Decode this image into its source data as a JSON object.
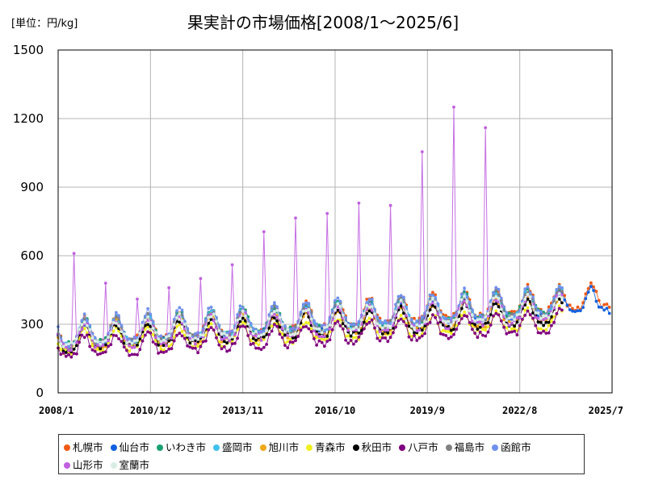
{
  "chart_data": {
    "type": "line",
    "title": "果実計の市場価格[2008/1～2025/6]",
    "unit_label": "[単位：円/kg]",
    "xlabel": "",
    "ylabel": "",
    "ylim": [
      0,
      1500
    ],
    "yticks": [
      0,
      300,
      600,
      900,
      1200,
      1500
    ],
    "y_tick_labels": [
      "0",
      "300",
      "600",
      "900",
      "1200",
      "1500"
    ],
    "x_range": [
      "2008/1",
      "2025/7"
    ],
    "x_tick_labels": [
      "2008/1",
      "2010/12",
      "2013/11",
      "2016/10",
      "2019/9",
      "2022/8",
      "2025/7"
    ],
    "grid": true,
    "legend_position": "bottom",
    "series": [
      {
        "name": "札幌市",
        "color": "#f05a14",
        "start": "2008/1",
        "end": "2025/6",
        "base": 250,
        "slope": 0.8,
        "amp": 55,
        "peak_month": 11,
        "spikes": {}
      },
      {
        "name": "仙台市",
        "color": "#1060e0",
        "start": "2008/1",
        "end": "2025/6",
        "base": 240,
        "slope": 0.75,
        "amp": 50,
        "peak_month": 11,
        "spikes": {}
      },
      {
        "name": "いわき市",
        "color": "#18a070",
        "start": "2008/1",
        "end": "2023/12",
        "base": 250,
        "slope": 0.75,
        "amp": 55,
        "peak_month": 11,
        "spikes": {}
      },
      {
        "name": "盛岡市",
        "color": "#40c0f0",
        "start": "2008/1",
        "end": "2023/12",
        "base": 245,
        "slope": 0.75,
        "amp": 55,
        "peak_month": 11,
        "spikes": {}
      },
      {
        "name": "旭川市",
        "color": "#f0a818",
        "start": "2008/1",
        "end": "2023/12",
        "base": 230,
        "slope": 0.65,
        "amp": 55,
        "peak_month": 11,
        "spikes": {}
      },
      {
        "name": "青森市",
        "color": "#f0f020",
        "start": "2008/1",
        "end": "2023/12",
        "base": 210,
        "slope": 0.55,
        "amp": 45,
        "peak_month": 11,
        "spikes": {}
      },
      {
        "name": "秋田市",
        "color": "#000000",
        "start": "2008/1",
        "end": "2023/12",
        "base": 225,
        "slope": 0.65,
        "amp": 50,
        "peak_month": 11,
        "spikes": {}
      },
      {
        "name": "八戸市",
        "color": "#800080",
        "start": "2008/1",
        "end": "2023/12",
        "base": 190,
        "slope": 0.6,
        "amp": 45,
        "peak_month": 11,
        "spikes": {}
      },
      {
        "name": "福島市",
        "color": "#808080",
        "start": "2008/1",
        "end": "2023/12",
        "base": 245,
        "slope": 0.75,
        "amp": 55,
        "peak_month": 11,
        "spikes": {}
      },
      {
        "name": "函館市",
        "color": "#7090f0",
        "start": "2008/1",
        "end": "2023/12",
        "base": 255,
        "slope": 0.75,
        "amp": 60,
        "peak_month": 11,
        "spikes": {}
      },
      {
        "name": "山形市",
        "color": "#c060e0",
        "start": "2008/1",
        "end": "2023/12",
        "base": 230,
        "slope": 0.7,
        "amp": 55,
        "peak_month": 11,
        "spikes": {
          "2008/7": 610,
          "2009/7": 480,
          "2010/7": 410,
          "2011/7": 460,
          "2012/7": 500,
          "2013/7": 560,
          "2014/7": 705,
          "2015/7": 765,
          "2016/7": 785,
          "2017/7": 830,
          "2018/7": 820,
          "2019/7": 1055,
          "2020/7": 1250,
          "2021/7": 1160
        }
      },
      {
        "name": "室蘭市",
        "color": "#d8eee4",
        "start": "2008/1",
        "end": "2023/12",
        "base": 240,
        "slope": 0.7,
        "amp": 50,
        "peak_month": 11,
        "spikes": {}
      }
    ]
  }
}
